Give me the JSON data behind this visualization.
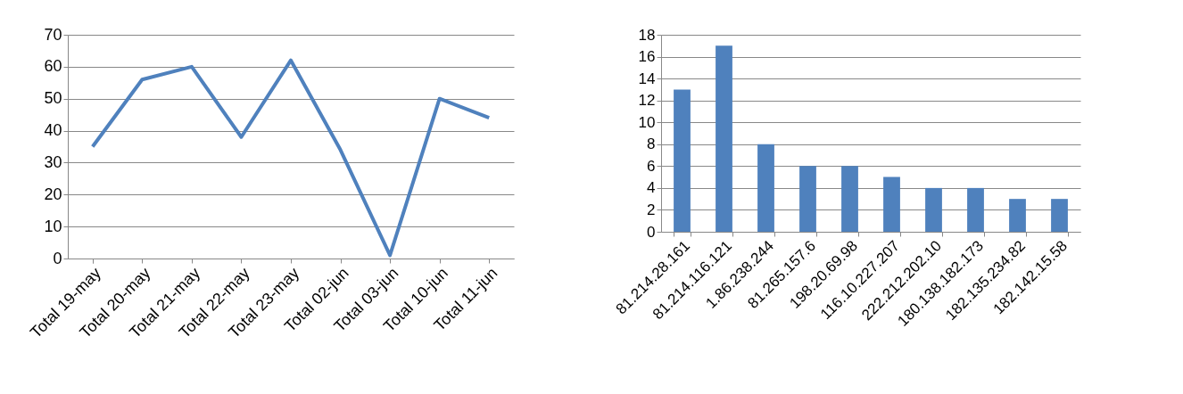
{
  "chart_data": [
    {
      "type": "line",
      "categories": [
        "Total 19-may",
        "Total 20-may",
        "Total 21-may",
        "Total 22-may",
        "Total 23-may",
        "Total 02-jun",
        "Total 03-jun",
        "Total 10-jun",
        "Total 11-jun"
      ],
      "values": [
        35,
        56,
        60,
        38,
        62,
        34,
        1,
        50,
        44
      ],
      "color": "#4f81bd",
      "ylim": [
        0,
        70
      ],
      "yticks": [
        0,
        10,
        20,
        30,
        40,
        50,
        60,
        70
      ],
      "grid": "y"
    },
    {
      "type": "bar",
      "categories": [
        "81.214.28.161",
        "81.214.116.121",
        "1.86.238.244",
        "81.265.157.6",
        "198.20.69.98",
        "116.10.227.207",
        "222.212.202.10",
        "180.138.182.173",
        "182.135.234.82",
        "182.142.15.58"
      ],
      "values": [
        13,
        17,
        8,
        6,
        6,
        5,
        4,
        4,
        3,
        3
      ],
      "color": "#4f81bd",
      "ylim": [
        0,
        18
      ],
      "yticks": [
        0,
        2,
        4,
        6,
        8,
        10,
        12,
        14,
        16,
        18
      ],
      "grid": "y"
    }
  ]
}
